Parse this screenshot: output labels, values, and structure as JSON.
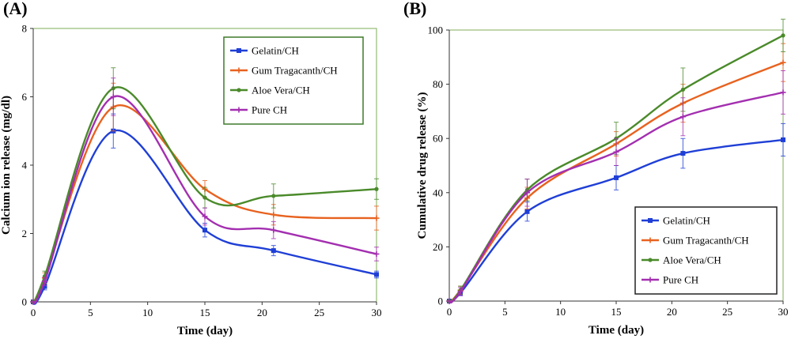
{
  "panel_labels": [
    "(A)",
    "(B)"
  ],
  "chart_data": [
    {
      "type": "line",
      "title": "",
      "xlabel": "Time (day)",
      "ylabel": "Calcium ion release (mg/dl)",
      "xlim": [
        0,
        30
      ],
      "ylim": [
        0,
        8
      ],
      "xticks": [
        0,
        5,
        10,
        15,
        20,
        25,
        30
      ],
      "yticks": [
        0,
        2,
        4,
        6,
        8
      ],
      "grid": false,
      "legend": "top-right",
      "x": [
        0,
        1,
        7,
        15,
        21,
        30
      ],
      "series": [
        {
          "name": "Gelatin/CH",
          "color": "#1f3fd6",
          "marker": "square",
          "values": [
            0,
            0.45,
            5.0,
            2.1,
            1.5,
            0.8
          ],
          "errors": [
            0,
            0.1,
            0.5,
            0.2,
            0.15,
            0.1
          ]
        },
        {
          "name": "Gum Tragacanth/CH",
          "color": "#e8621f",
          "marker": "plus",
          "values": [
            0,
            0.7,
            5.7,
            3.3,
            2.55,
            2.45
          ],
          "errors": [
            0,
            0.15,
            0.7,
            0.25,
            0.3,
            0.35
          ]
        },
        {
          "name": "Aloe Vera/CH",
          "color": "#4a8a2a",
          "marker": "dot",
          "values": [
            0,
            0.75,
            6.25,
            3.05,
            3.1,
            3.3
          ],
          "errors": [
            0,
            0.15,
            0.6,
            0.3,
            0.35,
            0.3
          ]
        },
        {
          "name": "Pure CH",
          "color": "#a32fb0",
          "marker": "plus",
          "values": [
            0,
            0.6,
            6.0,
            2.5,
            2.1,
            1.4
          ],
          "errors": [
            0,
            0.12,
            0.55,
            0.25,
            0.25,
            0.2
          ]
        }
      ]
    },
    {
      "type": "line",
      "title": "",
      "xlabel": "Time (day)",
      "ylabel": "Cumulative drug release (%)",
      "xlim": [
        0,
        30
      ],
      "ylim": [
        0,
        100
      ],
      "xticks": [
        0,
        5,
        10,
        15,
        20,
        25,
        30
      ],
      "yticks": [
        0,
        20,
        40,
        60,
        80,
        100
      ],
      "grid": false,
      "legend": "bottom-right",
      "x": [
        0,
        1,
        7,
        15,
        21,
        30
      ],
      "series": [
        {
          "name": "Gelatin/CH",
          "color": "#1f3fd6",
          "marker": "square",
          "values": [
            0,
            3,
            33,
            45.5,
            54.5,
            59.5
          ],
          "errors": [
            0,
            1,
            3.5,
            4.5,
            5.5,
            6
          ]
        },
        {
          "name": "Gum Tragacanth/CH",
          "color": "#e8621f",
          "marker": "plus",
          "values": [
            0,
            4,
            38,
            58,
            73,
            88
          ],
          "errors": [
            0,
            1.5,
            4,
            4.5,
            7,
            7
          ]
        },
        {
          "name": "Aloe Vera/CH",
          "color": "#4a8a2a",
          "marker": "dot",
          "values": [
            0,
            4,
            41,
            60,
            78,
            98
          ],
          "errors": [
            0,
            1.5,
            4,
            6,
            8,
            6
          ]
        },
        {
          "name": "Pure CH",
          "color": "#a32fb0",
          "marker": "plus",
          "values": [
            0,
            3.5,
            40,
            55,
            68,
            77
          ],
          "errors": [
            0,
            1.5,
            5,
            5,
            7,
            8
          ]
        }
      ]
    }
  ]
}
